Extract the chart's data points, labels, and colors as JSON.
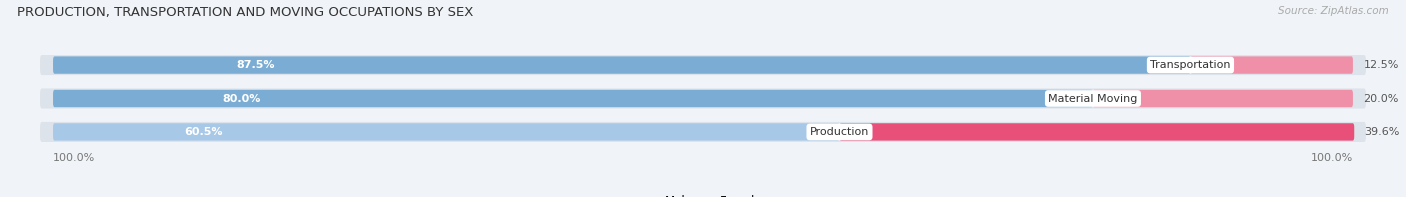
{
  "title": "PRODUCTION, TRANSPORTATION AND MOVING OCCUPATIONS BY SEX",
  "source": "Source: ZipAtlas.com",
  "categories": [
    "Transportation",
    "Material Moving",
    "Production"
  ],
  "male_values": [
    87.5,
    80.0,
    60.5
  ],
  "female_values": [
    12.5,
    20.0,
    39.6
  ],
  "male_color_top": "#7badd4",
  "male_color_bottom": "#a8c8e8",
  "female_color_top": "#f080a0",
  "female_color_middle": "#f090a8",
  "female_color_bottom": "#e8507a",
  "bar_background": "#dde3ea",
  "bg_color": "#f0f3f7",
  "title_fontsize": 9.5,
  "bar_height": 0.52,
  "bar_gap": 0.18,
  "figsize": [
    14.06,
    1.97
  ],
  "dpi": 100,
  "xlim_left": -5,
  "xlim_right": 105,
  "male_colors": [
    "#7badd4",
    "#7badd4",
    "#a8c8e8"
  ],
  "female_colors": [
    "#f090a8",
    "#f090a8",
    "#e8507a"
  ]
}
